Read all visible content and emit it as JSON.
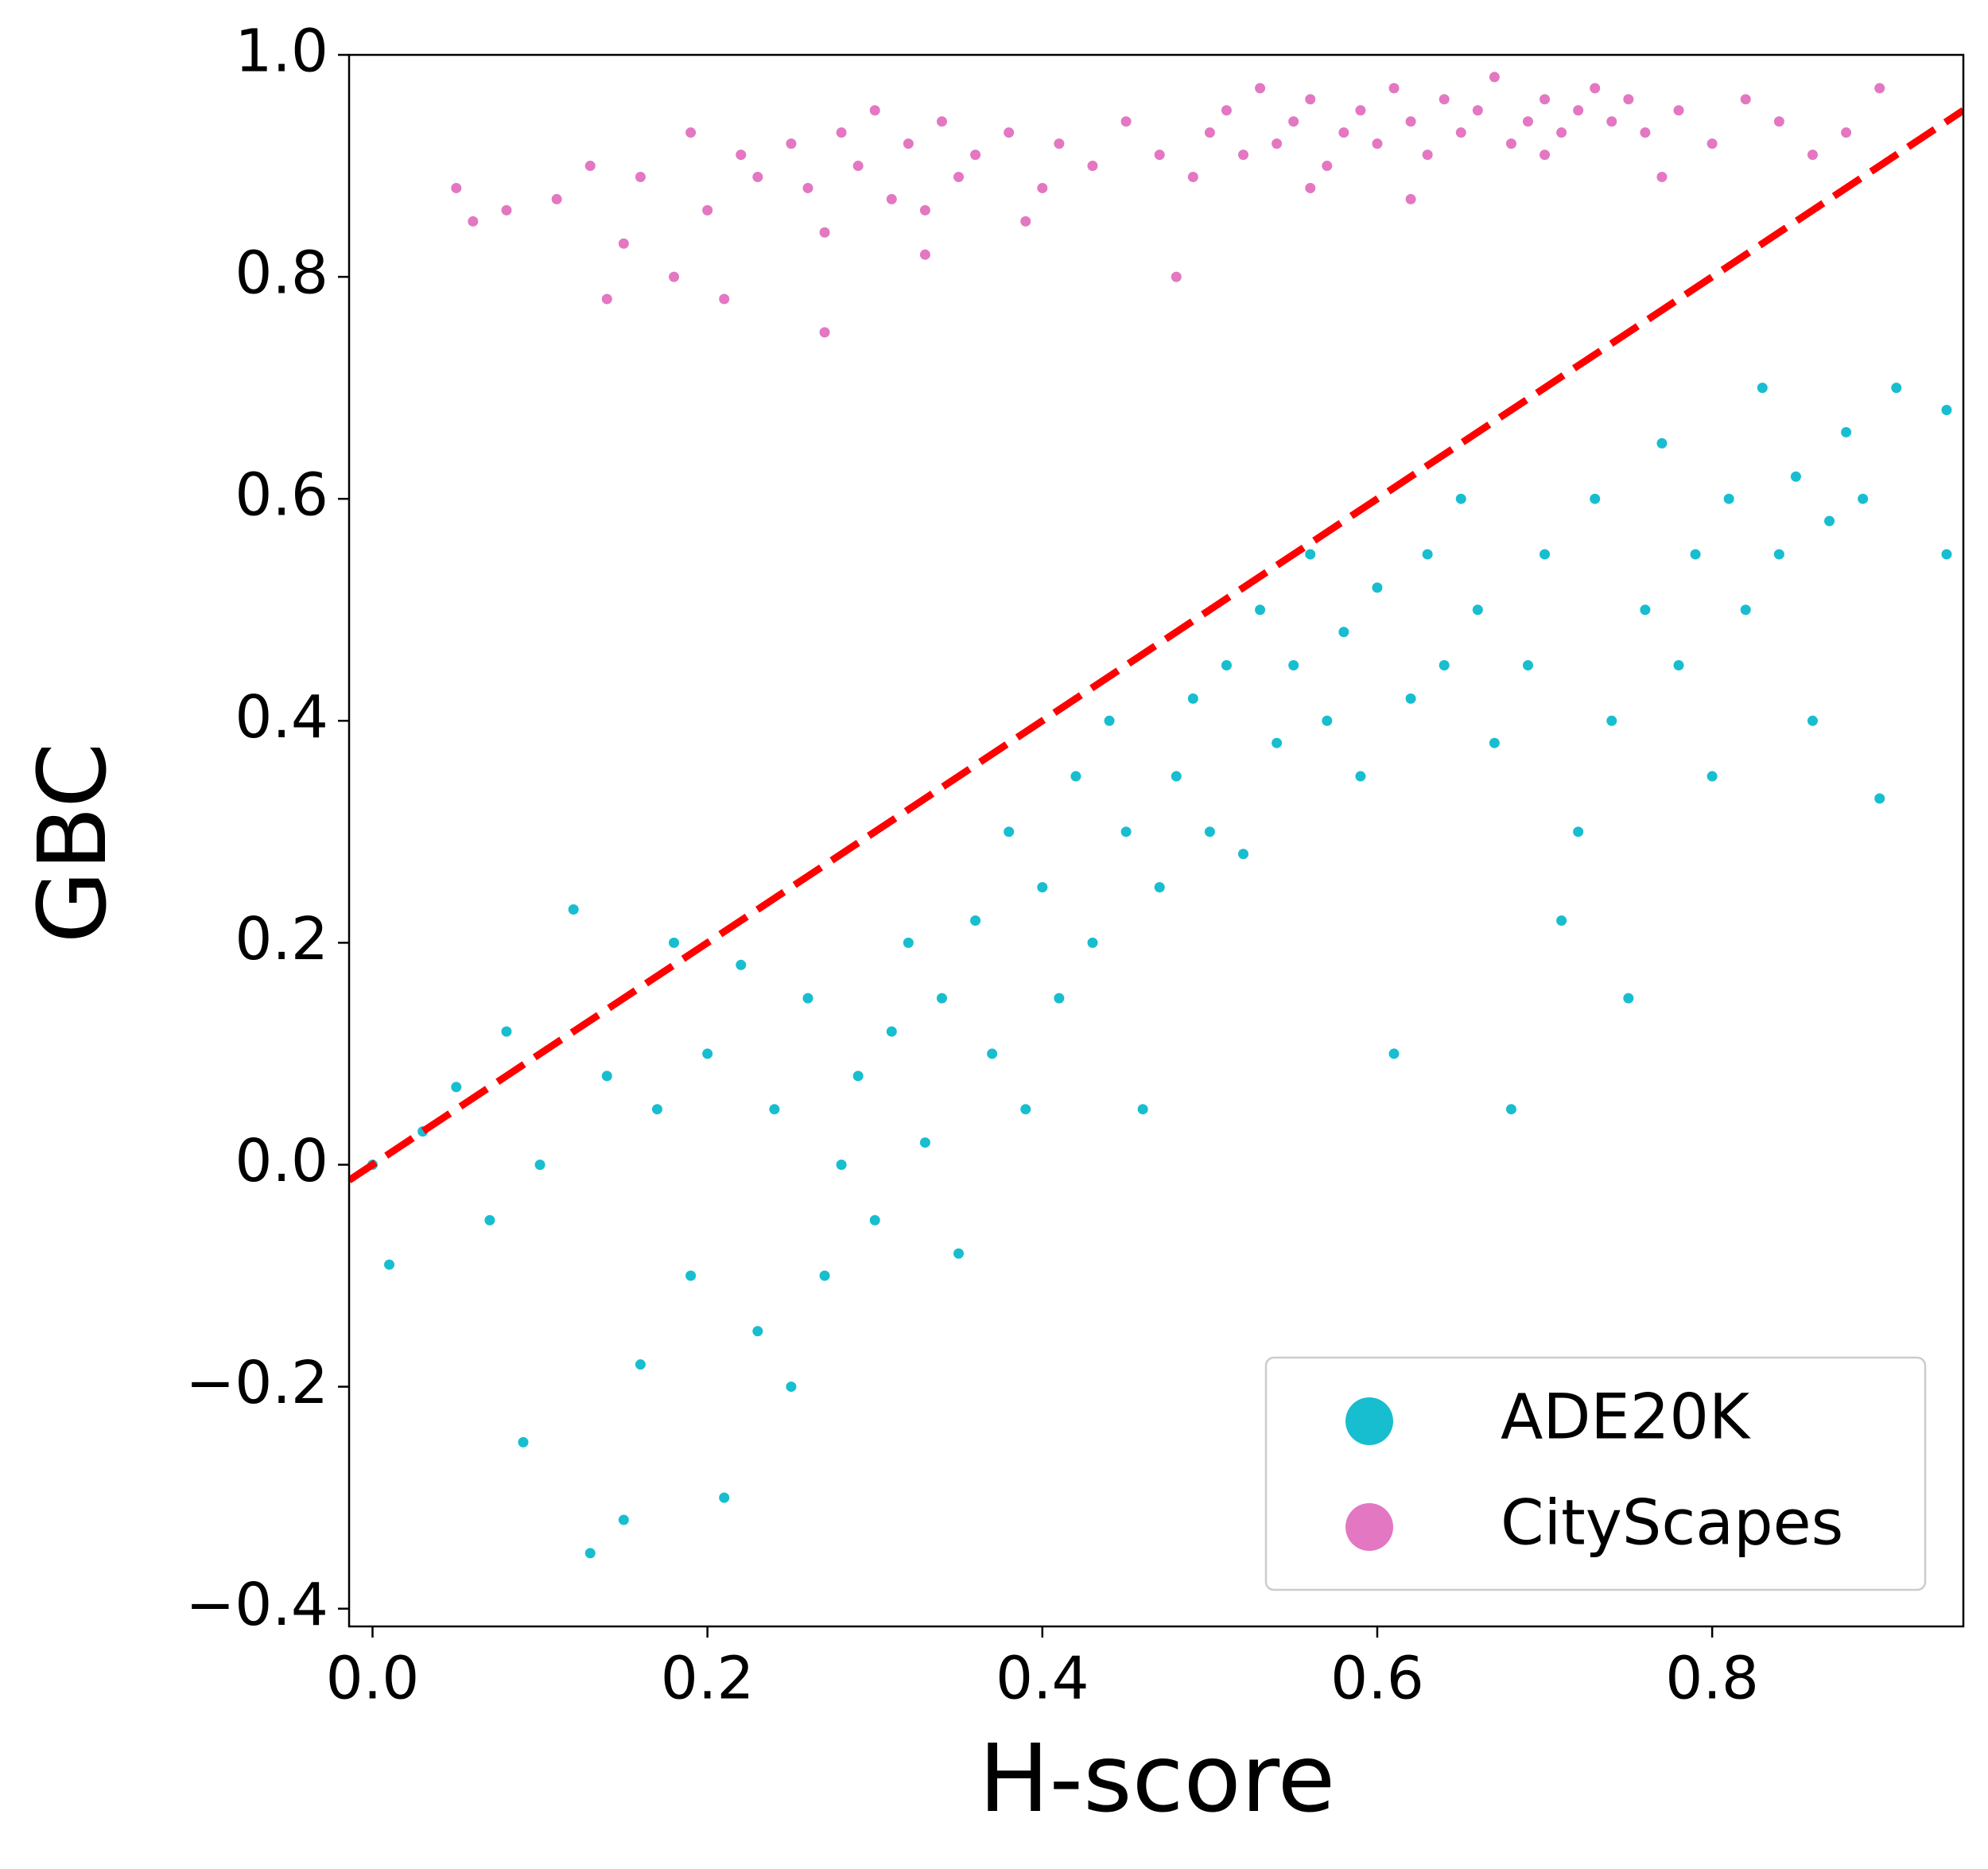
{
  "chart_data": {
    "type": "scatter",
    "xlabel": "H-score",
    "ylabel": "GBC",
    "xlim": [
      -0.014,
      0.95
    ],
    "ylim": [
      -0.416,
      1.0
    ],
    "xticks": [
      {
        "value": 0,
        "label": "0.0"
      },
      0.2,
      0.4,
      0.6,
      0.8
    ],
    "yticks": [
      {
        "value": -0.4,
        "label": "−0.4"
      },
      {
        "value": -0.2,
        "label": "−0.2"
      },
      {
        "value": 0,
        "label": "0.0"
      },
      0.2,
      0.4,
      0.6,
      0.8,
      {
        "value": 1,
        "label": "1.0"
      }
    ],
    "legend": "lower right",
    "series": [
      {
        "name": "ADE20K",
        "color": "#17becf",
        "x": [
          0.0,
          0.01,
          0.03,
          0.05,
          0.07,
          0.08,
          0.09,
          0.1,
          0.12,
          0.13,
          0.14,
          0.15,
          0.16,
          0.17,
          0.18,
          0.19,
          0.2,
          0.21,
          0.22,
          0.23,
          0.24,
          0.25,
          0.26,
          0.27,
          0.28,
          0.29,
          0.3,
          0.31,
          0.32,
          0.33,
          0.34,
          0.35,
          0.36,
          0.37,
          0.38,
          0.39,
          0.4,
          0.41,
          0.42,
          0.43,
          0.44,
          0.45,
          0.46,
          0.47,
          0.48,
          0.49,
          0.5,
          0.51,
          0.52,
          0.53,
          0.54,
          0.55,
          0.56,
          0.57,
          0.58,
          0.59,
          0.6,
          0.61,
          0.62,
          0.63,
          0.64,
          0.65,
          0.66,
          0.67,
          0.68,
          0.69,
          0.7,
          0.71,
          0.72,
          0.73,
          0.74,
          0.75,
          0.76,
          0.77,
          0.78,
          0.79,
          0.8,
          0.81,
          0.82,
          0.83,
          0.84,
          0.85,
          0.86,
          0.87,
          0.88,
          0.89,
          0.9,
          0.91,
          0.94,
          0.94
        ],
        "values": [
          0.0,
          -0.09,
          0.03,
          0.07,
          -0.05,
          0.12,
          -0.25,
          0.0,
          0.23,
          -0.35,
          0.08,
          -0.32,
          -0.18,
          0.05,
          0.2,
          -0.1,
          0.1,
          -0.3,
          0.18,
          -0.15,
          0.05,
          -0.2,
          0.15,
          -0.1,
          0.0,
          0.08,
          -0.05,
          0.12,
          0.2,
          0.02,
          0.15,
          -0.08,
          0.22,
          0.1,
          0.3,
          0.05,
          0.25,
          0.15,
          0.35,
          0.2,
          0.4,
          0.3,
          0.05,
          0.25,
          0.35,
          0.42,
          0.3,
          0.45,
          0.28,
          0.5,
          0.38,
          0.45,
          0.55,
          0.4,
          0.48,
          0.35,
          0.52,
          0.1,
          0.42,
          0.55,
          0.45,
          0.6,
          0.5,
          0.38,
          0.05,
          0.45,
          0.55,
          0.22,
          0.3,
          0.6,
          0.4,
          0.15,
          0.5,
          0.65,
          0.45,
          0.55,
          0.35,
          0.6,
          0.5,
          0.7,
          0.55,
          0.62,
          0.4,
          0.58,
          0.66,
          0.6,
          0.33,
          0.7,
          0.55,
          0.68
        ]
      },
      {
        "name": "CityScapes",
        "color": "#e377c2",
        "x": [
          0.05,
          0.06,
          0.08,
          0.11,
          0.13,
          0.14,
          0.16,
          0.18,
          0.19,
          0.21,
          0.22,
          0.23,
          0.25,
          0.26,
          0.27,
          0.28,
          0.29,
          0.3,
          0.31,
          0.32,
          0.33,
          0.34,
          0.35,
          0.36,
          0.38,
          0.4,
          0.41,
          0.43,
          0.45,
          0.47,
          0.49,
          0.5,
          0.51,
          0.52,
          0.53,
          0.54,
          0.55,
          0.56,
          0.57,
          0.58,
          0.59,
          0.6,
          0.61,
          0.62,
          0.63,
          0.64,
          0.65,
          0.66,
          0.67,
          0.68,
          0.69,
          0.7,
          0.71,
          0.72,
          0.73,
          0.74,
          0.75,
          0.76,
          0.78,
          0.8,
          0.82,
          0.84,
          0.86,
          0.88,
          0.9,
          0.15,
          0.2,
          0.27,
          0.33,
          0.39,
          0.48,
          0.56,
          0.62,
          0.7,
          0.77
        ],
        "values": [
          0.88,
          0.85,
          0.86,
          0.87,
          0.9,
          0.78,
          0.89,
          0.8,
          0.93,
          0.78,
          0.91,
          0.89,
          0.92,
          0.88,
          0.75,
          0.93,
          0.9,
          0.95,
          0.87,
          0.92,
          0.86,
          0.94,
          0.89,
          0.91,
          0.93,
          0.88,
          0.92,
          0.9,
          0.94,
          0.91,
          0.89,
          0.93,
          0.95,
          0.91,
          0.97,
          0.92,
          0.94,
          0.96,
          0.9,
          0.93,
          0.95,
          0.92,
          0.97,
          0.94,
          0.91,
          0.96,
          0.93,
          0.95,
          0.98,
          0.92,
          0.94,
          0.96,
          0.93,
          0.95,
          0.97,
          0.94,
          0.96,
          0.93,
          0.95,
          0.92,
          0.96,
          0.94,
          0.91,
          0.93,
          0.97,
          0.83,
          0.86,
          0.84,
          0.82,
          0.85,
          0.8,
          0.88,
          0.87,
          0.91,
          0.89
        ]
      }
    ],
    "reference_line": {
      "x": [
        -0.014,
        0.95
      ],
      "values": [
        -0.014,
        0.95
      ],
      "color": "#ff0000",
      "dashed": true
    }
  }
}
